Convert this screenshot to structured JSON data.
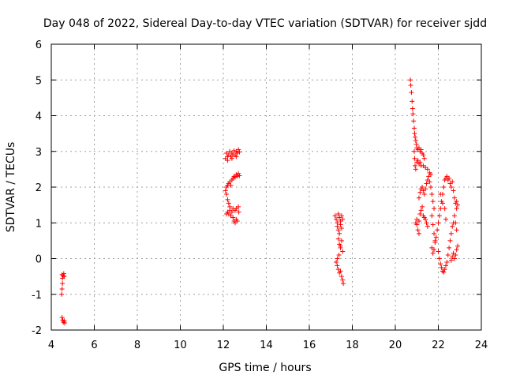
{
  "chart_data": {
    "type": "scatter",
    "title": "Day 048 of 2022, Sidereal Day-to-day VTEC variation (SDTVAR) for receiver sjdd",
    "xlabel": "GPS time / hours",
    "ylabel": "SDTVAR / TECUs",
    "xlim": [
      4,
      24
    ],
    "ylim": [
      -2,
      6
    ],
    "xticks": [
      4,
      6,
      8,
      10,
      12,
      14,
      16,
      18,
      20,
      22,
      24
    ],
    "yticks": [
      -2,
      -1,
      0,
      1,
      2,
      3,
      4,
      5,
      6
    ],
    "grid": true,
    "marker": "plus",
    "series": [
      {
        "name": "SDTVAR",
        "color": "#ff0000",
        "points": [
          [
            4.5,
            -0.45
          ],
          [
            4.52,
            -0.55
          ],
          [
            4.55,
            -0.48
          ],
          [
            4.58,
            -0.42
          ],
          [
            4.6,
            -0.5
          ],
          [
            4.52,
            -0.7
          ],
          [
            4.5,
            -0.85
          ],
          [
            4.48,
            -1.0
          ],
          [
            4.5,
            -1.65
          ],
          [
            4.53,
            -1.72
          ],
          [
            4.56,
            -1.78
          ],
          [
            4.6,
            -1.74
          ],
          [
            4.62,
            -1.8
          ],
          [
            12.1,
            2.8
          ],
          [
            12.15,
            2.95
          ],
          [
            12.2,
            2.85
          ],
          [
            12.25,
            2.9
          ],
          [
            12.3,
            3.0
          ],
          [
            12.35,
            2.85
          ],
          [
            12.4,
            2.95
          ],
          [
            12.45,
            2.9
          ],
          [
            12.5,
            3.02
          ],
          [
            12.55,
            2.9
          ],
          [
            12.6,
            3.0
          ],
          [
            12.65,
            2.95
          ],
          [
            12.7,
            3.05
          ],
          [
            12.75,
            2.98
          ],
          [
            12.2,
            2.75
          ],
          [
            12.4,
            2.8
          ],
          [
            12.6,
            2.85
          ],
          [
            12.1,
            1.9
          ],
          [
            12.15,
            2.0
          ],
          [
            12.2,
            2.05
          ],
          [
            12.25,
            2.1
          ],
          [
            12.3,
            2.15
          ],
          [
            12.35,
            2.05
          ],
          [
            12.4,
            2.2
          ],
          [
            12.45,
            2.25
          ],
          [
            12.5,
            2.3
          ],
          [
            12.55,
            2.28
          ],
          [
            12.6,
            2.35
          ],
          [
            12.65,
            2.3
          ],
          [
            12.7,
            2.38
          ],
          [
            12.75,
            2.32
          ],
          [
            12.15,
            1.8
          ],
          [
            12.2,
            1.65
          ],
          [
            12.25,
            1.55
          ],
          [
            12.3,
            1.45
          ],
          [
            12.2,
            1.3
          ],
          [
            12.25,
            1.25
          ],
          [
            12.3,
            1.35
          ],
          [
            12.35,
            1.2
          ],
          [
            12.4,
            1.3
          ],
          [
            12.45,
            1.15
          ],
          [
            12.5,
            1.05
          ],
          [
            12.55,
            1.0
          ],
          [
            12.6,
            1.1
          ],
          [
            12.65,
            1.05
          ],
          [
            12.45,
            1.4
          ],
          [
            12.55,
            1.35
          ],
          [
            12.6,
            1.4
          ],
          [
            12.7,
            1.45
          ],
          [
            12.72,
            1.3
          ],
          [
            12.15,
            1.25
          ],
          [
            17.2,
            1.2
          ],
          [
            17.25,
            1.1
          ],
          [
            17.3,
            1.0
          ],
          [
            17.35,
            1.25
          ],
          [
            17.4,
            1.15
          ],
          [
            17.45,
            1.05
          ],
          [
            17.5,
            1.2
          ],
          [
            17.55,
            1.1
          ],
          [
            17.3,
            0.9
          ],
          [
            17.35,
            0.8
          ],
          [
            17.4,
            0.7
          ],
          [
            17.45,
            0.95
          ],
          [
            17.5,
            0.85
          ],
          [
            17.35,
            0.55
          ],
          [
            17.4,
            0.4
          ],
          [
            17.45,
            0.3
          ],
          [
            17.5,
            0.5
          ],
          [
            17.55,
            0.2
          ],
          [
            17.38,
            0.1
          ],
          [
            17.45,
            0.35
          ],
          [
            17.25,
            -0.1
          ],
          [
            17.3,
            -0.2
          ],
          [
            17.35,
            -0.3
          ],
          [
            17.4,
            -0.4
          ],
          [
            17.45,
            -0.35
          ],
          [
            17.5,
            -0.5
          ],
          [
            17.55,
            -0.6
          ],
          [
            17.58,
            -0.7
          ],
          [
            17.3,
            0.0
          ],
          [
            20.7,
            5.0
          ],
          [
            20.72,
            4.85
          ],
          [
            20.75,
            4.65
          ],
          [
            20.78,
            4.4
          ],
          [
            20.8,
            4.2
          ],
          [
            20.82,
            4.05
          ],
          [
            20.85,
            3.85
          ],
          [
            20.88,
            3.65
          ],
          [
            20.9,
            3.5
          ],
          [
            20.92,
            3.4
          ],
          [
            20.95,
            3.3
          ],
          [
            20.98,
            3.2
          ],
          [
            21.0,
            3.1
          ],
          [
            21.05,
            3.05
          ],
          [
            21.1,
            3.1
          ],
          [
            21.15,
            3.0
          ],
          [
            21.2,
            3.05
          ],
          [
            21.25,
            2.95
          ],
          [
            21.3,
            2.9
          ],
          [
            21.35,
            2.8
          ],
          [
            20.88,
            3.0
          ],
          [
            20.9,
            2.8
          ],
          [
            20.92,
            2.6
          ],
          [
            20.95,
            2.5
          ],
          [
            21.0,
            2.7
          ],
          [
            21.05,
            2.75
          ],
          [
            21.1,
            2.65
          ],
          [
            21.15,
            2.7
          ],
          [
            21.2,
            2.6
          ],
          [
            21.3,
            2.6
          ],
          [
            21.4,
            2.55
          ],
          [
            21.5,
            2.5
          ],
          [
            21.6,
            2.4
          ],
          [
            21.65,
            2.35
          ],
          [
            20.95,
            1.0
          ],
          [
            21.0,
            0.95
          ],
          [
            21.05,
            0.8
          ],
          [
            21.1,
            0.7
          ],
          [
            21.0,
            1.1
          ],
          [
            21.1,
            1.05
          ],
          [
            21.15,
            1.25
          ],
          [
            21.2,
            1.35
          ],
          [
            21.25,
            1.45
          ],
          [
            21.3,
            1.2
          ],
          [
            21.35,
            1.15
          ],
          [
            21.4,
            1.1
          ],
          [
            21.45,
            1.0
          ],
          [
            21.5,
            0.9
          ],
          [
            21.1,
            1.7
          ],
          [
            21.15,
            1.85
          ],
          [
            21.2,
            1.95
          ],
          [
            21.25,
            2.0
          ],
          [
            21.3,
            1.9
          ],
          [
            21.35,
            1.8
          ],
          [
            21.4,
            1.95
          ],
          [
            21.45,
            2.1
          ],
          [
            21.5,
            2.2
          ],
          [
            21.55,
            2.3
          ],
          [
            21.6,
            2.15
          ],
          [
            21.65,
            2.0
          ],
          [
            21.7,
            1.8
          ],
          [
            21.75,
            1.6
          ],
          [
            21.8,
            1.4
          ],
          [
            21.7,
            1.2
          ],
          [
            21.75,
            0.95
          ],
          [
            21.8,
            0.7
          ],
          [
            21.85,
            0.5
          ],
          [
            21.7,
            0.3
          ],
          [
            21.75,
            0.15
          ],
          [
            21.8,
            0.25
          ],
          [
            21.85,
            0.45
          ],
          [
            21.9,
            0.6
          ],
          [
            21.95,
            0.8
          ],
          [
            22.0,
            1.0
          ],
          [
            22.05,
            1.2
          ],
          [
            22.1,
            1.4
          ],
          [
            22.15,
            1.6
          ],
          [
            22.2,
            1.8
          ],
          [
            22.25,
            2.0
          ],
          [
            22.3,
            2.2
          ],
          [
            22.35,
            2.25
          ],
          [
            22.4,
            2.3
          ],
          [
            22.45,
            2.2
          ],
          [
            22.5,
            2.25
          ],
          [
            22.55,
            2.1
          ],
          [
            22.6,
            2.0
          ],
          [
            22.65,
            2.15
          ],
          [
            22.7,
            1.9
          ],
          [
            22.75,
            1.7
          ],
          [
            22.8,
            1.55
          ],
          [
            22.85,
            1.4
          ],
          [
            22.0,
            0.2
          ],
          [
            22.05,
            0.0
          ],
          [
            22.1,
            -0.15
          ],
          [
            22.15,
            -0.25
          ],
          [
            22.2,
            -0.35
          ],
          [
            22.25,
            -0.38
          ],
          [
            22.3,
            -0.3
          ],
          [
            22.35,
            -0.2
          ],
          [
            22.4,
            -0.1
          ],
          [
            22.45,
            0.1
          ],
          [
            22.5,
            0.3
          ],
          [
            22.55,
            0.5
          ],
          [
            22.6,
            0.7
          ],
          [
            22.65,
            0.9
          ],
          [
            22.7,
            1.0
          ],
          [
            22.75,
            1.2
          ],
          [
            22.8,
            1.0
          ],
          [
            22.85,
            0.8
          ],
          [
            22.6,
            -0.05
          ],
          [
            22.65,
            0.05
          ],
          [
            22.7,
            0.15
          ],
          [
            22.75,
            0.0
          ],
          [
            22.8,
            0.1
          ],
          [
            22.85,
            0.25
          ],
          [
            22.9,
            0.35
          ],
          [
            22.85,
            1.6
          ],
          [
            22.9,
            1.5
          ],
          [
            22.1,
            1.8
          ],
          [
            22.2,
            1.55
          ],
          [
            22.3,
            1.4
          ],
          [
            22.35,
            1.1
          ]
        ]
      }
    ]
  }
}
